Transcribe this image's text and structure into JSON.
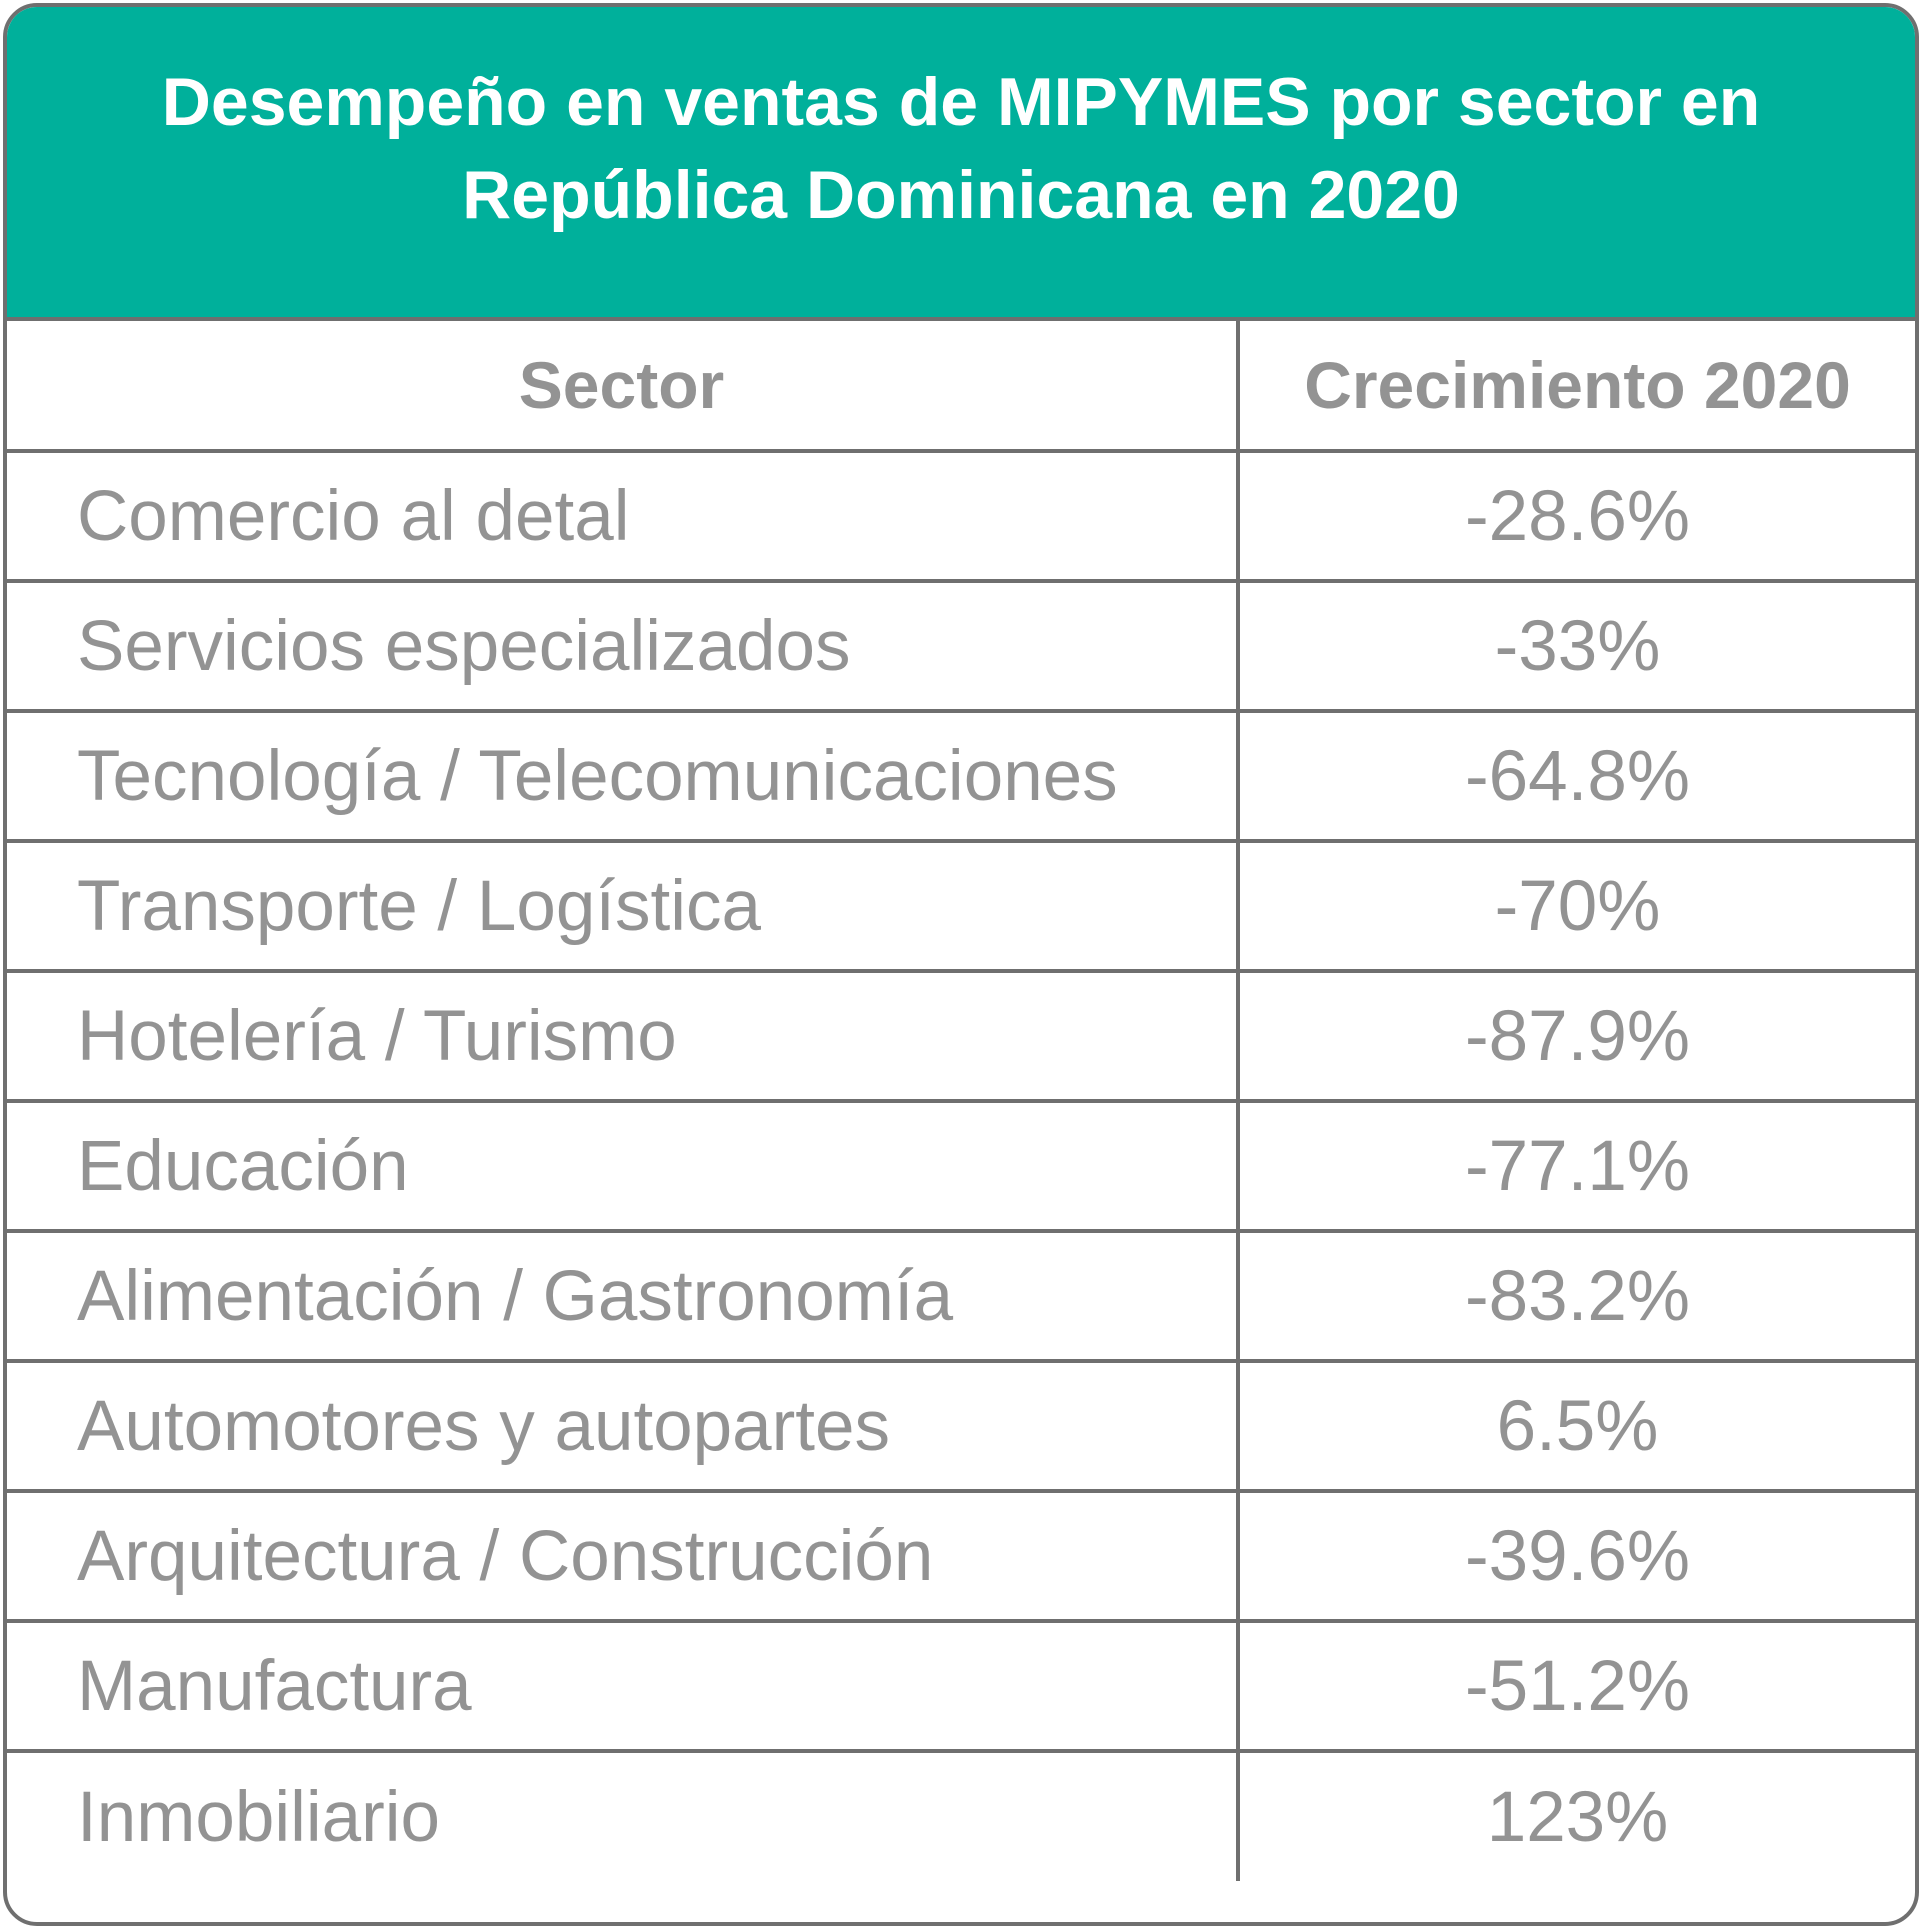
{
  "colors": {
    "header_bg": "#00b09b",
    "border": "#6f6f6f",
    "text": "#939393",
    "title_text": "#ffffff"
  },
  "chart_data": {
    "type": "table",
    "title_lines": [
      "Desempeño en ventas de MIPYMES por sector en",
      "República Dominicana en 2020"
    ],
    "columns": [
      "Sector",
      "Crecimiento 2020"
    ],
    "rows": [
      {
        "sector": "Comercio al detal",
        "growth": "-28.6%"
      },
      {
        "sector": "Servicios especializados",
        "growth": "-33%"
      },
      {
        "sector": "Tecnología / Telecomunicaciones",
        "growth": "-64.8%"
      },
      {
        "sector": "Transporte / Logística",
        "growth": "-70%"
      },
      {
        "sector": "Hotelería / Turismo",
        "growth": "-87.9%"
      },
      {
        "sector": "Educación",
        "growth": "-77.1%"
      },
      {
        "sector": "Alimentación / Gastronomía",
        "growth": "-83.2%"
      },
      {
        "sector": "Automotores y autopartes",
        "growth": "6.5%"
      },
      {
        "sector": "Arquitectura / Construcción",
        "growth": "-39.6%"
      },
      {
        "sector": "Manufactura",
        "growth": "-51.2%"
      },
      {
        "sector": "Inmobiliario",
        "growth": "123%"
      }
    ]
  }
}
